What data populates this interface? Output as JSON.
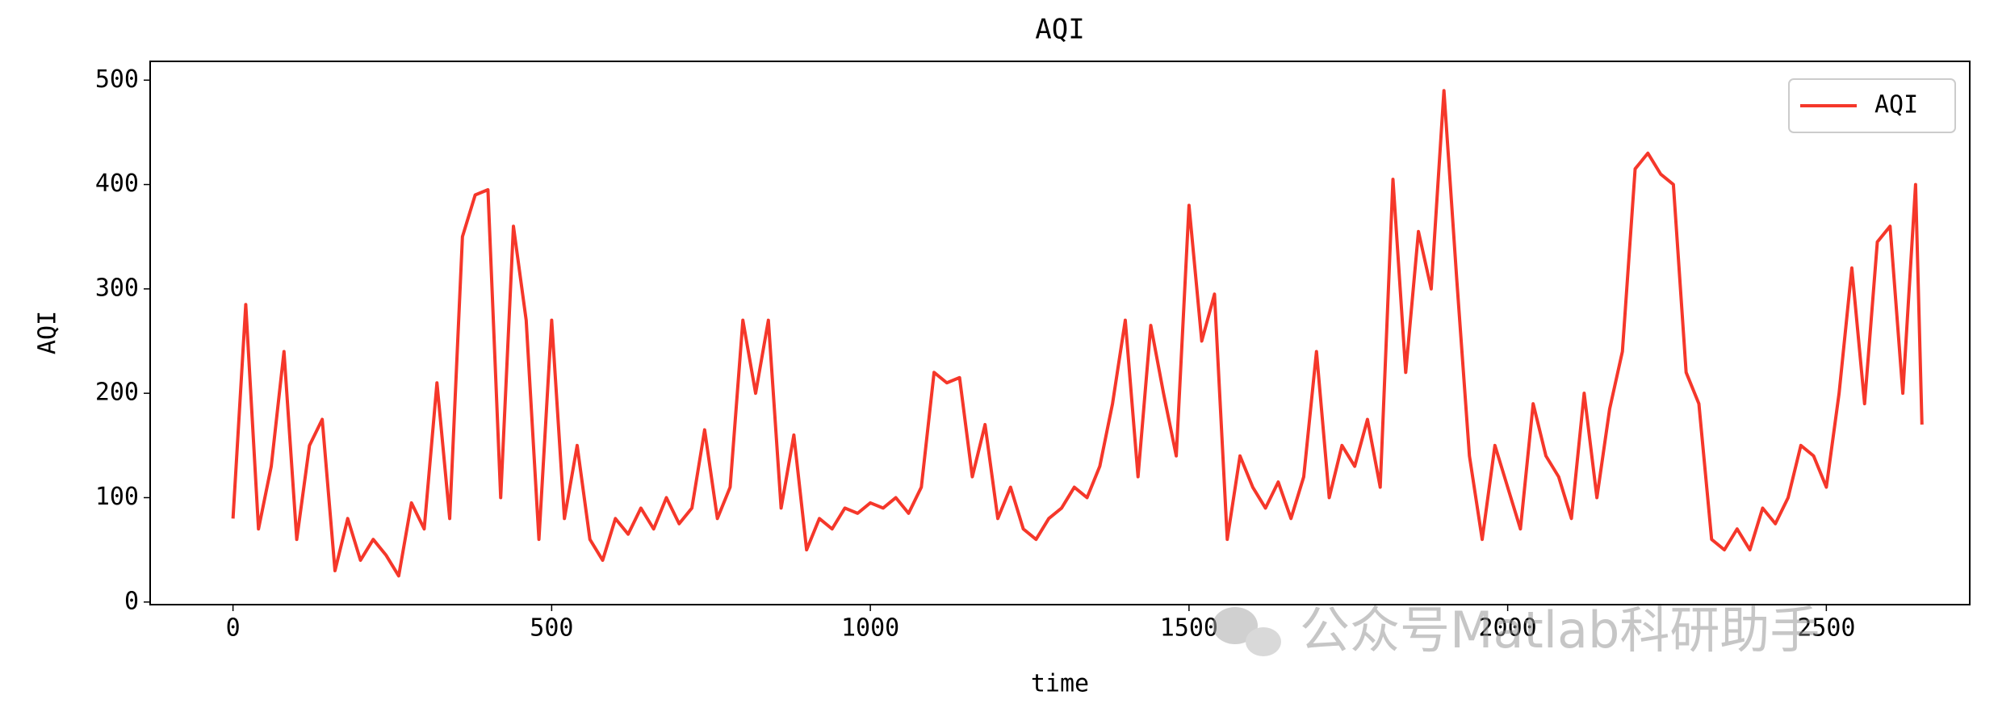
{
  "chart_data": {
    "type": "line",
    "title": "AQI",
    "xlabel": "time",
    "ylabel": "AQI",
    "watermark": "公众号Matlab科研助手",
    "x": [
      0,
      20,
      40,
      60,
      80,
      100,
      120,
      140,
      160,
      180,
      200,
      220,
      240,
      260,
      280,
      300,
      320,
      340,
      360,
      380,
      400,
      420,
      440,
      460,
      480,
      500,
      520,
      540,
      560,
      580,
      600,
      620,
      640,
      660,
      680,
      700,
      720,
      740,
      760,
      780,
      800,
      820,
      840,
      860,
      880,
      900,
      920,
      940,
      960,
      980,
      1000,
      1020,
      1040,
      1060,
      1080,
      1100,
      1120,
      1140,
      1160,
      1180,
      1200,
      1220,
      1240,
      1260,
      1280,
      1300,
      1320,
      1340,
      1360,
      1380,
      1400,
      1420,
      1440,
      1460,
      1480,
      1500,
      1520,
      1540,
      1560,
      1580,
      1600,
      1620,
      1640,
      1660,
      1680,
      1700,
      1720,
      1740,
      1760,
      1780,
      1800,
      1820,
      1840,
      1860,
      1880,
      1900,
      1920,
      1940,
      1960,
      1980,
      2000,
      2020,
      2040,
      2060,
      2080,
      2100,
      2120,
      2140,
      2160,
      2180,
      2200,
      2220,
      2240,
      2260,
      2280,
      2300,
      2320,
      2340,
      2360,
      2380,
      2400,
      2420,
      2440,
      2460,
      2480,
      2500,
      2520,
      2540,
      2560,
      2580,
      2600,
      2620,
      2640,
      2650
    ],
    "series": [
      {
        "name": "AQI",
        "color": "#f5372a",
        "values": [
          80,
          285,
          70,
          130,
          240,
          60,
          150,
          175,
          30,
          80,
          40,
          60,
          45,
          25,
          95,
          70,
          210,
          80,
          350,
          390,
          395,
          100,
          360,
          270,
          60,
          270,
          80,
          150,
          60,
          40,
          80,
          65,
          90,
          70,
          100,
          75,
          90,
          165,
          80,
          110,
          270,
          200,
          270,
          90,
          160,
          50,
          80,
          70,
          90,
          85,
          95,
          90,
          100,
          85,
          110,
          220,
          210,
          215,
          120,
          170,
          80,
          110,
          70,
          60,
          80,
          90,
          110,
          100,
          130,
          190,
          270,
          120,
          265,
          200,
          140,
          380,
          250,
          295,
          60,
          140,
          110,
          90,
          115,
          80,
          120,
          240,
          100,
          150,
          130,
          175,
          110,
          405,
          220,
          355,
          300,
          490,
          310,
          140,
          60,
          150,
          110,
          70,
          190,
          140,
          120,
          80,
          200,
          100,
          185,
          240,
          415,
          430,
          410,
          400,
          220,
          190,
          60,
          50,
          70,
          50,
          90,
          75,
          100,
          150,
          140,
          110,
          200,
          320,
          190,
          345,
          360,
          200,
          400,
          170
        ]
      }
    ],
    "xlim": [
      -130,
      2725
    ],
    "xticks": [
      0,
      500,
      1000,
      1500,
      2000,
      2500
    ],
    "ylim": [
      -2.5,
      518
    ],
    "yticks": [
      0,
      100,
      200,
      300,
      400,
      500
    ],
    "legend": "upper right"
  }
}
